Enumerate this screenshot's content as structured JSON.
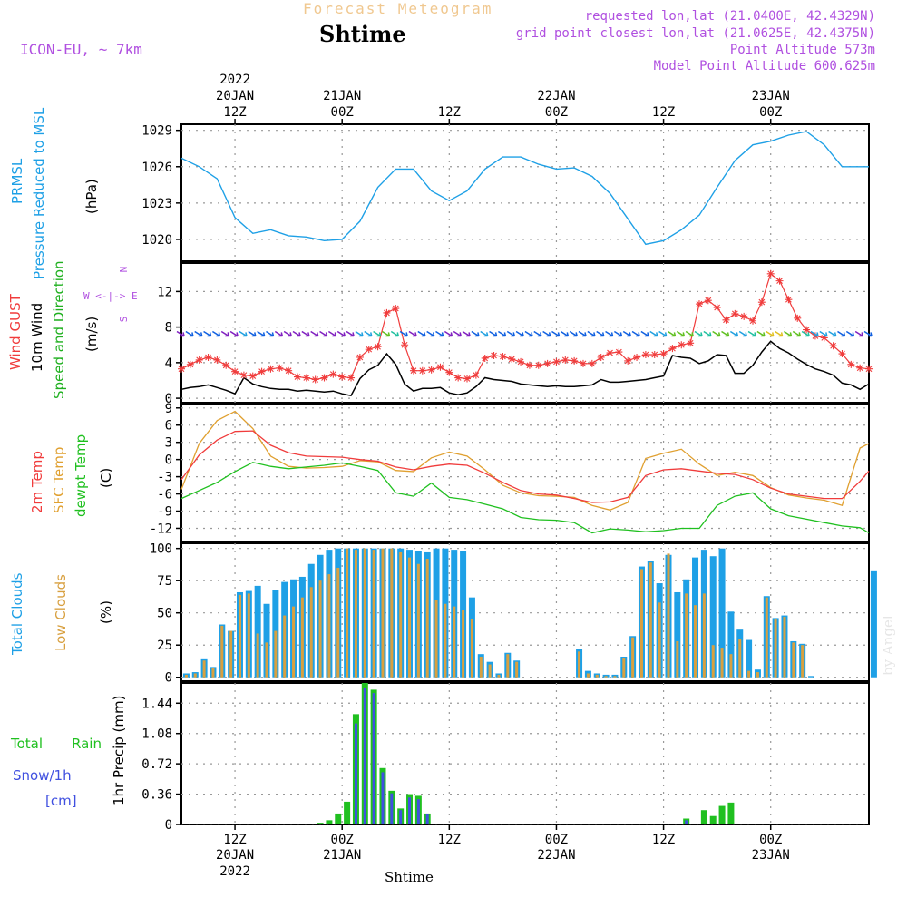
{
  "header": {
    "faint_title": "Forecast Meteogram",
    "title": "Shtime",
    "model": "ICON-EU, ~ 7km",
    "requested": "requested lon,lat (21.0400E, 42.4329N)",
    "gridpoint": "grid point closest lon,lat (21.0625E, 42.4375N)",
    "point_alt": "Point Altitude 573m",
    "model_alt": "Model Point Altitude 600.625m"
  },
  "signature": "by Angel",
  "xlabel": "Shtime",
  "time_axis": {
    "start_hour": 0,
    "end_hour": 77,
    "ticks": [
      {
        "hour": 6,
        "label": "12Z"
      },
      {
        "hour": 18,
        "label": "00Z"
      },
      {
        "hour": 30,
        "label": "12Z"
      },
      {
        "hour": 42,
        "label": "00Z"
      },
      {
        "hour": 54,
        "label": "12Z"
      },
      {
        "hour": 66,
        "label": "00Z"
      }
    ],
    "top_dates": [
      {
        "hour": 6,
        "lines": [
          "2022",
          "20JAN",
          "12Z"
        ]
      },
      {
        "hour": 18,
        "lines": [
          "21JAN",
          "00Z"
        ]
      },
      {
        "hour": 30,
        "lines": [
          "12Z"
        ]
      },
      {
        "hour": 42,
        "lines": [
          "22JAN",
          "00Z"
        ]
      },
      {
        "hour": 54,
        "lines": [
          "12Z"
        ]
      },
      {
        "hour": 66,
        "lines": [
          "23JAN",
          "00Z"
        ]
      }
    ],
    "bottom_dates": [
      {
        "hour": 6,
        "lines": [
          "20JAN",
          "2022"
        ]
      },
      {
        "hour": 18,
        "lines": [
          "21JAN"
        ]
      },
      {
        "hour": 42,
        "lines": [
          "22JAN"
        ]
      },
      {
        "hour": 66,
        "lines": [
          "23JAN"
        ]
      }
    ]
  },
  "colors": {
    "pressure": "#1ea0e6",
    "gust": "#f03c3c",
    "wind": "#000000",
    "wind_dir": "#20b020",
    "temp": "#f03c3c",
    "sfc": "#e0a030",
    "dew": "#20c020",
    "total_cloud": "#1ea0e6",
    "low_cloud": "#d8a040",
    "rain": "#20c020",
    "snow": "#4050e0",
    "compass": "#b050e0"
  },
  "panel_labels": {
    "pressure": {
      "lines": [
        "PRMSL",
        "Pressure Reduced to MSL"
      ],
      "unit": "(hPa)"
    },
    "wind": {
      "gust": "Wind GUST",
      "wind": "10m Wind",
      "dir": "Speed and Direction",
      "unit": "(m/s)",
      "compass": [
        "N",
        "W <-|-> E",
        "S"
      ]
    },
    "temp": {
      "t2m": "2m Temp",
      "sfc": "SFC Temp",
      "dew": "dewpt Temp",
      "unit": "(C)"
    },
    "cloud": {
      "total": "Total Clouds",
      "low": "Low Clouds",
      "unit": "(%)"
    },
    "precip": {
      "total": "Total",
      "rain": "Rain",
      "snow": "Snow/1h",
      "cm": "[cm]",
      "ylabel": "1hr Precip (mm)"
    }
  },
  "chart_data": [
    {
      "type": "line",
      "title": "PRMSL Pressure Reduced to MSL",
      "ylabel": "(hPa)",
      "ylim": [
        1018.2,
        1029.5
      ],
      "yticks": [
        1020,
        1023,
        1026,
        1029
      ],
      "x": [
        0,
        2,
        4,
        6,
        8,
        10,
        12,
        14,
        16,
        18,
        20,
        22,
        24,
        26,
        28,
        30,
        32,
        34,
        36,
        38,
        40,
        42,
        44,
        46,
        48,
        50,
        52,
        54,
        56,
        58,
        60,
        62,
        64,
        66,
        68,
        70,
        72,
        74,
        76,
        77
      ],
      "series": [
        {
          "name": "PRMSL",
          "values": [
            1026.7,
            1026.0,
            1025.0,
            1021.8,
            1020.5,
            1020.8,
            1020.3,
            1020.2,
            1019.9,
            1020.0,
            1021.5,
            1024.3,
            1025.8,
            1025.8,
            1024.0,
            1023.2,
            1024.0,
            1025.8,
            1026.8,
            1026.8,
            1026.2,
            1025.8,
            1025.9,
            1025.2,
            1023.8,
            1021.7,
            1019.6,
            1019.9,
            1020.8,
            1022.0,
            1024.3,
            1026.5,
            1027.8,
            1028.1,
            1028.6,
            1028.9,
            1027.8,
            1026.0,
            1026.0,
            1026.0
          ]
        }
      ]
    },
    {
      "type": "line",
      "title": "Wind GUST / 10m Wind Speed and Direction",
      "ylabel": "(m/s)",
      "ylim": [
        -0.5,
        15.2
      ],
      "yticks": [
        0,
        4,
        8,
        12
      ],
      "x": [
        0,
        1,
        2,
        3,
        4,
        5,
        6,
        7,
        8,
        9,
        10,
        11,
        12,
        13,
        14,
        15,
        16,
        17,
        18,
        19,
        20,
        21,
        22,
        23,
        24,
        25,
        26,
        27,
        28,
        29,
        30,
        31,
        32,
        33,
        34,
        35,
        36,
        37,
        38,
        39,
        40,
        41,
        42,
        43,
        44,
        45,
        46,
        47,
        48,
        49,
        50,
        51,
        52,
        53,
        54,
        55,
        56,
        57,
        58,
        59,
        60,
        61,
        62,
        63,
        64,
        65,
        66,
        67,
        68,
        69,
        70,
        71,
        72,
        73,
        74,
        75,
        76,
        77
      ],
      "series": [
        {
          "name": "Wind GUST",
          "values": [
            3.3,
            3.8,
            4.3,
            4.6,
            4.3,
            3.7,
            3.0,
            2.6,
            2.5,
            3.0,
            3.3,
            3.4,
            3.1,
            2.4,
            2.3,
            2.1,
            2.3,
            2.7,
            2.4,
            2.3,
            4.6,
            5.5,
            5.8,
            9.6,
            10.1,
            6.0,
            3.1,
            3.1,
            3.2,
            3.5,
            2.9,
            2.3,
            2.2,
            2.6,
            4.5,
            4.8,
            4.7,
            4.4,
            4.1,
            3.7,
            3.7,
            3.9,
            4.1,
            4.3,
            4.2,
            3.9,
            3.9,
            4.6,
            5.1,
            5.2,
            4.2,
            4.6,
            4.9,
            4.9,
            5.0,
            5.6,
            6.0,
            6.2,
            10.6,
            11.0,
            10.2,
            8.8,
            9.5,
            9.2,
            8.7,
            10.8,
            14.0,
            13.2,
            11.1,
            9.0,
            7.7,
            7.0,
            6.8,
            5.9,
            5.0,
            3.8,
            3.4,
            3.3
          ]
        },
        {
          "name": "10m Wind",
          "values": [
            1.0,
            1.2,
            1.3,
            1.5,
            1.2,
            0.9,
            0.5,
            2.3,
            1.6,
            1.3,
            1.1,
            1.0,
            1.0,
            0.8,
            0.9,
            0.8,
            0.7,
            0.8,
            0.5,
            0.3,
            2.2,
            3.2,
            3.7,
            5.0,
            3.8,
            1.6,
            0.8,
            1.1,
            1.1,
            1.2,
            0.6,
            0.4,
            0.6,
            1.3,
            2.3,
            2.1,
            2.0,
            1.9,
            1.6,
            1.5,
            1.4,
            1.3,
            1.4,
            1.3,
            1.3,
            1.4,
            1.5,
            2.1,
            1.8,
            1.8,
            1.9,
            2.0,
            2.1,
            2.3,
            2.5,
            4.8,
            4.6,
            4.5,
            3.9,
            4.2,
            4.9,
            4.8,
            2.8,
            2.8,
            3.7,
            5.2,
            6.4,
            5.6,
            5.1,
            4.4,
            3.8,
            3.3,
            3.0,
            2.6,
            1.7,
            1.5,
            1.0,
            1.6
          ]
        }
      ]
    },
    {
      "type": "line",
      "title": "2m Temp / SFC Temp / dewpt Temp",
      "ylabel": "(C)",
      "ylim": [
        -14.3,
        9.6
      ],
      "yticks": [
        -12,
        -9,
        -6,
        -3,
        0,
        3,
        6,
        9
      ],
      "x": [
        0,
        2,
        4,
        6,
        8,
        10,
        12,
        14,
        16,
        18,
        20,
        22,
        24,
        26,
        28,
        30,
        32,
        34,
        36,
        38,
        40,
        42,
        44,
        46,
        48,
        50,
        52,
        54,
        56,
        58,
        60,
        62,
        64,
        66,
        68,
        70,
        72,
        74,
        76,
        77
      ],
      "series": [
        {
          "name": "2m Temp",
          "values": [
            -3.5,
            0.8,
            3.4,
            4.9,
            5.0,
            2.5,
            1.2,
            0.6,
            0.5,
            0.4,
            0.0,
            -0.3,
            -1.3,
            -1.8,
            -1.2,
            -0.8,
            -1.0,
            -2.4,
            -4.0,
            -5.4,
            -6.0,
            -6.2,
            -6.8,
            -7.5,
            -7.4,
            -6.6,
            -2.8,
            -1.8,
            -1.6,
            -2.0,
            -2.4,
            -2.6,
            -3.5,
            -5.0,
            -6.0,
            -6.4,
            -6.8,
            -6.8,
            -3.8,
            -2.0
          ]
        },
        {
          "name": "SFC Temp",
          "values": [
            -5.2,
            2.8,
            6.8,
            8.4,
            5.4,
            0.6,
            -1.2,
            -1.5,
            -1.4,
            -1.2,
            -0.2,
            -0.4,
            -1.9,
            -2.1,
            0.3,
            1.3,
            0.6,
            -1.8,
            -4.5,
            -5.8,
            -6.3,
            -6.4,
            -6.6,
            -8.0,
            -8.8,
            -7.5,
            0.2,
            1.1,
            1.8,
            -0.8,
            -2.8,
            -2.2,
            -2.8,
            -4.9,
            -6.2,
            -6.7,
            -7.1,
            -8.0,
            2.0,
            2.8
          ]
        },
        {
          "name": "dewpt Temp",
          "values": [
            -6.8,
            -5.4,
            -4.0,
            -2.1,
            -0.5,
            -1.2,
            -1.6,
            -1.3,
            -1.0,
            -0.6,
            -1.2,
            -1.9,
            -5.8,
            -6.4,
            -4.1,
            -6.6,
            -7.0,
            -7.8,
            -8.6,
            -10.1,
            -10.5,
            -10.6,
            -11.0,
            -12.8,
            -12.1,
            -12.3,
            -12.6,
            -12.4,
            -12.0,
            -12.0,
            -8.0,
            -6.4,
            -5.8,
            -8.6,
            -9.8,
            -10.4,
            -11.0,
            -11.6,
            -11.9,
            -12.8
          ]
        }
      ]
    },
    {
      "type": "bar",
      "title": "Total Clouds / Low Clouds",
      "ylabel": "(%)",
      "ylim": [
        -3,
        104
      ],
      "yticks": [
        0,
        25,
        50,
        75,
        100
      ],
      "categories": [
        0,
        1,
        2,
        3,
        4,
        5,
        6,
        7,
        8,
        9,
        10,
        11,
        12,
        13,
        14,
        15,
        16,
        17,
        18,
        19,
        20,
        21,
        22,
        23,
        24,
        25,
        26,
        27,
        28,
        29,
        30,
        31,
        32,
        33,
        34,
        35,
        36,
        37,
        38,
        39,
        40,
        41,
        42,
        43,
        44,
        45,
        46,
        47,
        48,
        49,
        50,
        51,
        52,
        53,
        54,
        55,
        56,
        57,
        58,
        59,
        60,
        61,
        62,
        63,
        64,
        65,
        66,
        67,
        68,
        69,
        70,
        71,
        72,
        73,
        74,
        75,
        76,
        77
      ],
      "series": [
        {
          "name": "Total Clouds",
          "values": [
            3,
            4,
            14,
            8,
            41,
            36,
            66,
            67,
            71,
            57,
            68,
            74,
            76,
            78,
            88,
            95,
            99,
            100,
            100,
            100,
            100,
            100,
            100,
            100,
            100,
            99,
            98,
            97,
            100,
            100,
            99,
            98,
            62,
            18,
            12,
            3,
            19,
            13,
            0,
            0,
            0,
            0,
            0,
            0,
            22,
            5,
            3,
            2,
            2,
            16,
            32,
            86,
            90,
            73,
            95,
            66,
            76,
            93,
            99,
            94,
            100,
            51,
            37,
            29,
            6,
            63,
            46,
            48,
            28,
            26,
            1,
            0,
            0,
            0,
            0,
            0,
            0,
            83
          ]
        },
        {
          "name": "Low Clouds",
          "values": [
            2,
            3,
            13,
            7,
            40,
            36,
            64,
            65,
            34,
            27,
            36,
            48,
            55,
            62,
            70,
            75,
            80,
            85,
            100,
            99,
            100,
            99,
            100,
            100,
            97,
            93,
            88,
            92,
            60,
            57,
            55,
            52,
            45,
            16,
            10,
            2,
            18,
            12,
            0,
            0,
            0,
            0,
            0,
            0,
            20,
            3,
            2,
            1,
            1,
            15,
            31,
            84,
            89,
            58,
            96,
            28,
            65,
            56,
            65,
            25,
            23,
            18,
            30,
            5,
            4,
            62,
            45,
            47,
            27,
            25,
            0,
            0,
            0,
            0,
            0,
            0,
            0,
            0
          ]
        }
      ]
    },
    {
      "type": "bar",
      "title": "Total Rain / Snow 1h",
      "ylabel": "1hr Precip (mm)",
      "ylim": [
        0,
        1.68
      ],
      "yticks": [
        0,
        0.36,
        0.72,
        1.08,
        1.44
      ],
      "categories": [
        0,
        1,
        2,
        3,
        4,
        5,
        6,
        7,
        8,
        9,
        10,
        11,
        12,
        13,
        14,
        15,
        16,
        17,
        18,
        19,
        20,
        21,
        22,
        23,
        24,
        25,
        26,
        27,
        28,
        29,
        30,
        31,
        32,
        33,
        34,
        35,
        36,
        37,
        38,
        39,
        40,
        41,
        42,
        43,
        44,
        45,
        46,
        47,
        48,
        49,
        50,
        51,
        52,
        53,
        54,
        55,
        56,
        57,
        58,
        59,
        60,
        61,
        62,
        63,
        64,
        65,
        66,
        67,
        68,
        69,
        70,
        71,
        72,
        73,
        74,
        75,
        76,
        77
      ],
      "series": [
        {
          "name": "Total Rain",
          "values": [
            0,
            0,
            0,
            0,
            0,
            0,
            0,
            0,
            0,
            0,
            0,
            0,
            0,
            0,
            0,
            0.02,
            0.05,
            0.13,
            0.27,
            1.31,
            1.68,
            1.6,
            0.67,
            0.4,
            0.19,
            0.36,
            0.34,
            0.13,
            0,
            0,
            0,
            0,
            0,
            0,
            0,
            0,
            0,
            0,
            0,
            0,
            0,
            0,
            0,
            0,
            0,
            0,
            0,
            0,
            0,
            0,
            0,
            0,
            0,
            0,
            0,
            0,
            0.07,
            0,
            0.17,
            0.1,
            0.22,
            0.26,
            0,
            0,
            0,
            0,
            0,
            0,
            0,
            0,
            0,
            0,
            0,
            0,
            0,
            0,
            0,
            0
          ]
        },
        {
          "name": "Snow/1h",
          "values": [
            0,
            0,
            0,
            0,
            0,
            0,
            0,
            0,
            0,
            0,
            0,
            0,
            0,
            0,
            0,
            0,
            0,
            0,
            0,
            1.2,
            1.62,
            1.56,
            0.62,
            0.37,
            0.17,
            0.32,
            0.3,
            0.12,
            0,
            0,
            0,
            0,
            0,
            0,
            0,
            0,
            0,
            0,
            0,
            0,
            0,
            0,
            0,
            0,
            0,
            0,
            0,
            0,
            0,
            0,
            0,
            0,
            0,
            0,
            0,
            0,
            0.05,
            0,
            0,
            0,
            0,
            0,
            0,
            0,
            0,
            0,
            0,
            0,
            0,
            0,
            0,
            0,
            0,
            0,
            0,
            0,
            0,
            0
          ]
        }
      ]
    }
  ]
}
